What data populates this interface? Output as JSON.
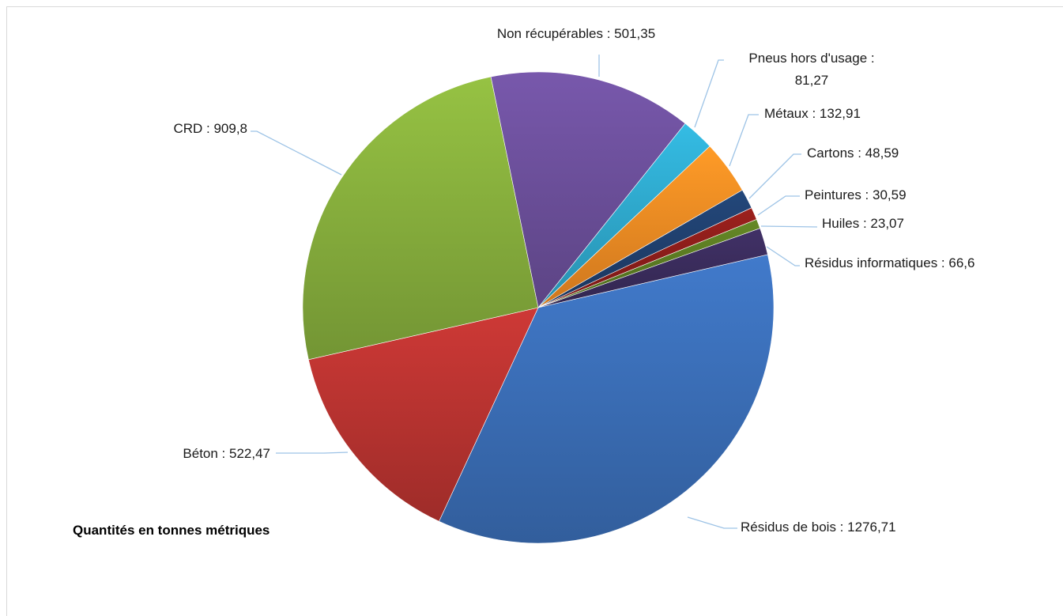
{
  "chart_data": {
    "type": "pie",
    "note": "Quantités en tonnes métriques",
    "slices": [
      {
        "name": "Résidus de bois",
        "value": 1276.71,
        "label": "Résidus de bois : 1276,71",
        "color": "#3a6db5"
      },
      {
        "name": "Béton",
        "value": 522.47,
        "label": "Béton : 522,47",
        "color": "#b83330"
      },
      {
        "name": "CRD",
        "value": 909.8,
        "label": "CRD : 909,8",
        "color": "#86ad3c"
      },
      {
        "name": "Non récupérables",
        "value": 501.35,
        "label": "Non récupérables : 501,35",
        "color": "#6b4f9a"
      },
      {
        "name": "Pneus hors d'usage",
        "value": 81.27,
        "label": "Pneus hors d'usage :",
        "label_line2": "81,27",
        "color": "#2ea8cc"
      },
      {
        "name": "Métaux",
        "value": 132.91,
        "label": "Métaux : 132,91",
        "color": "#ef8a23"
      },
      {
        "name": "Cartons",
        "value": 48.59,
        "label": "Cartons : 48,59",
        "color": "#1f3f6d"
      },
      {
        "name": "Peintures",
        "value": 30.59,
        "label": "Peintures : 30,59",
        "color": "#8b1d1a"
      },
      {
        "name": "Huiles",
        "value": 23.07,
        "label": "Huiles : 23,07",
        "color": "#5a7a22"
      },
      {
        "name": "Résidus informatiques",
        "value": 66.6,
        "label": "Résidus informatiques : 66,6",
        "color": "#3a2c5c"
      }
    ]
  }
}
